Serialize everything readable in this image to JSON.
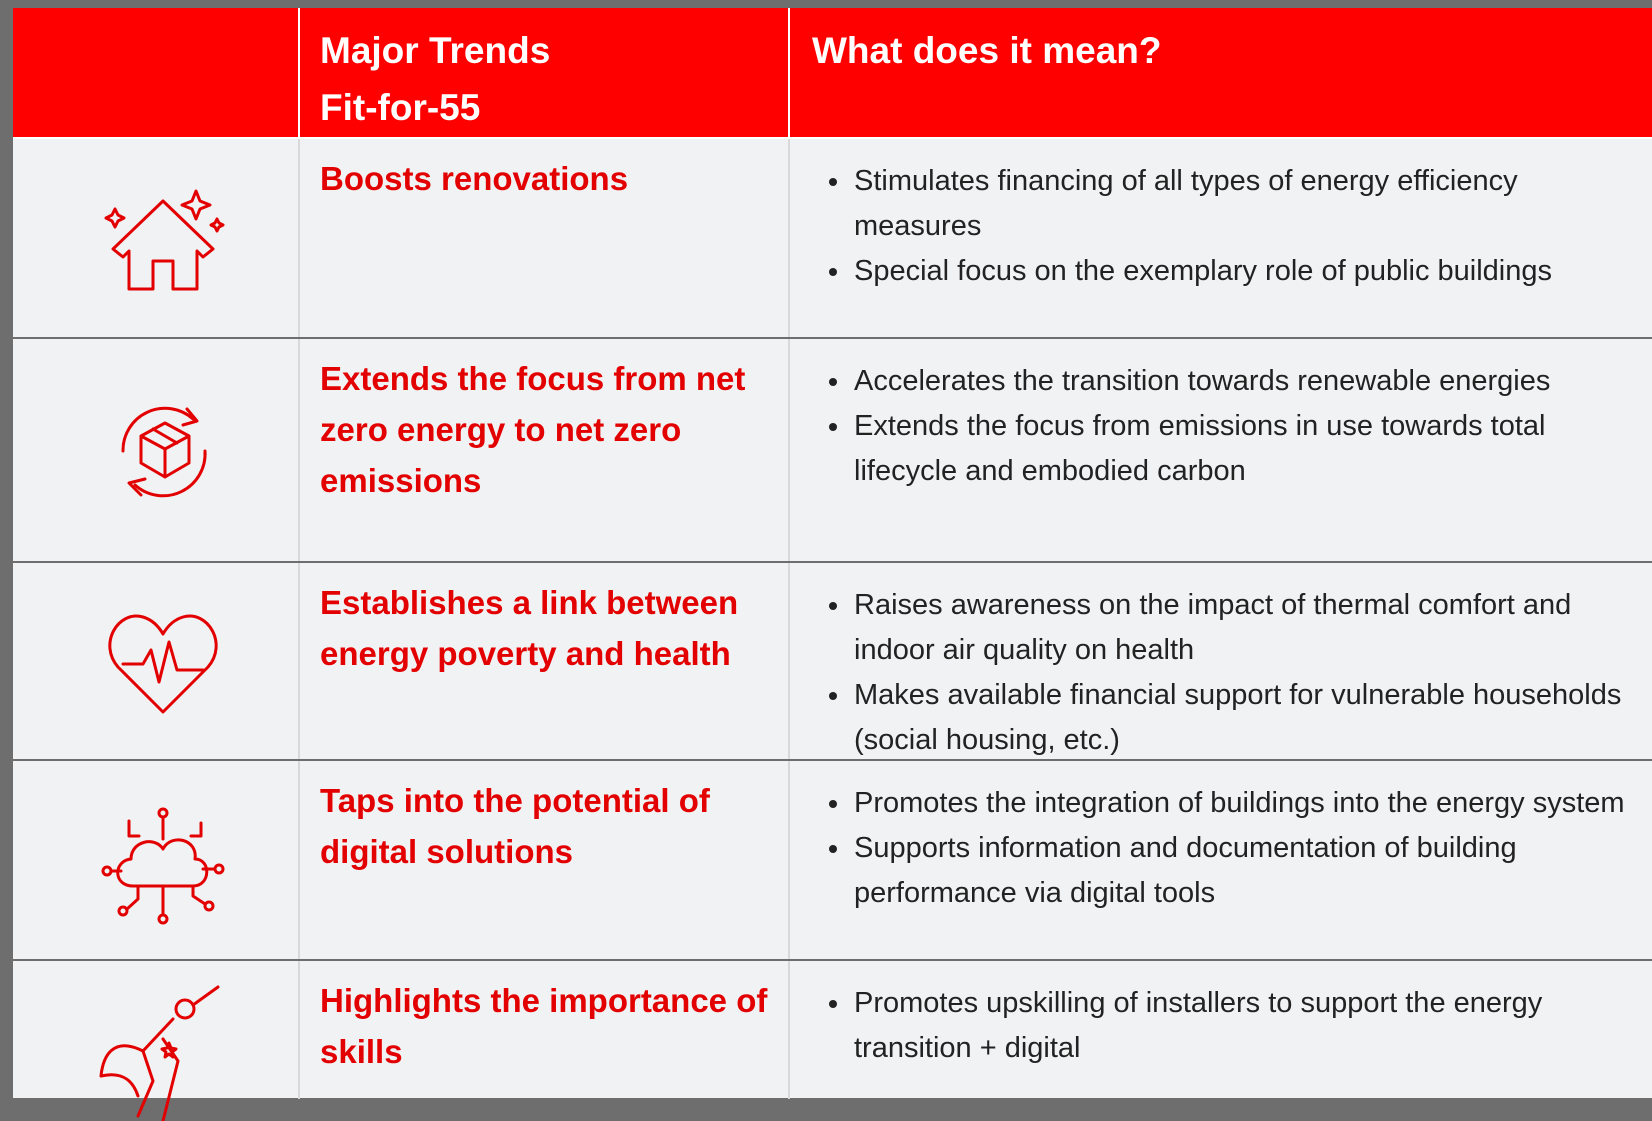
{
  "table": {
    "header": {
      "trend": [
        "Major Trends",
        "Fit-for-55"
      ],
      "meaning": "What does it mean?"
    },
    "rows": [
      {
        "icon": "house",
        "trend": "Boosts renovations",
        "points": [
          "Stimulates financing of all types of energy efficiency measures",
          "Special focus on the exemplary role of public buildings"
        ]
      },
      {
        "icon": "cycle",
        "trend": "Extends the focus from net zero energy to net zero emissions",
        "points": [
          "Accelerates the transition towards renewable energies",
          "Extends the focus from emissions in use towards total lifecycle and embodied carbon"
        ]
      },
      {
        "icon": "heart",
        "trend": "Establishes a link between energy poverty and health",
        "points": [
          "Raises awareness on the impact of thermal comfort and indoor air quality on health",
          "Makes available financial support for vulnerable households (social housing, etc.)"
        ]
      },
      {
        "icon": "cloud",
        "trend": "Taps into the potential of digital solutions",
        "points": [
          "Promotes the integration of buildings into the energy system",
          "Supports information and documentation of building performance via digital tools"
        ]
      },
      {
        "icon": "hero",
        "trend": "Highlights the importance of skills",
        "points": [
          "Promotes upskilling of installers to support the energy transition + digital"
        ]
      }
    ]
  }
}
